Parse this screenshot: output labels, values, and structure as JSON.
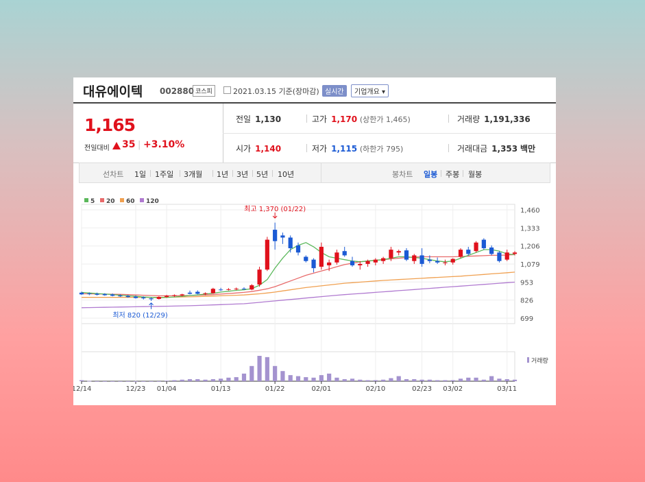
{
  "header": {
    "name": "대유에이텍",
    "code": "002880",
    "market": "코스피",
    "date": "2021.03.15 기준(장마감)",
    "realtime": "실시간",
    "corp_info": "기업개요 ▾"
  },
  "quote": {
    "price": "1,165",
    "change_label": "전일대비",
    "change_value": "35",
    "change_pct": "+3.10%",
    "prev_label": "전일",
    "prev": "1,130",
    "high_label": "고가",
    "high": "1,170",
    "upper_limit": "(상한가 1,465)",
    "volume_label": "거래량",
    "volume": "1,191,336",
    "open_label": "시가",
    "open": "1,140",
    "low_label": "저가",
    "low": "1,115",
    "lower_limit": "(하한가 795)",
    "amount_label": "거래대금",
    "amount": "1,353",
    "amount_unit": "백만"
  },
  "tabs": {
    "line_label": "선차트",
    "periods": [
      "1일",
      "1주일",
      "3개월",
      "1년",
      "3년",
      "5년",
      "10년"
    ],
    "candle_label": "봉차트",
    "candle_types": [
      "일봉",
      "주봉",
      "월봉"
    ],
    "candle_selected": 0
  },
  "colors": {
    "up": "#e0111c",
    "down": "#1b5ad4",
    "ma5": "#5bb85b",
    "ma20": "#e86a6a",
    "ma60": "#f0a050",
    "ma120": "#b07ad0",
    "volume": "#a493cf"
  },
  "chart_data": {
    "type": "candlestick",
    "legend": [
      "5",
      "20",
      "60",
      "120"
    ],
    "y_ticks": [
      1460,
      1333,
      1206,
      1079,
      953,
      826,
      699
    ],
    "y_tick_labels": [
      "1,460",
      "1,333",
      "1,206",
      "1,079",
      "953",
      "826",
      "699"
    ],
    "ylim": [
      699,
      1460
    ],
    "x_labels": [
      {
        "label": "12/14",
        "index": 0
      },
      {
        "label": "12/23",
        "index": 7
      },
      {
        "label": "01/04",
        "index": 11
      },
      {
        "label": "01/13",
        "index": 18
      },
      {
        "label": "01/22",
        "index": 25
      },
      {
        "label": "02/01",
        "index": 31
      },
      {
        "label": "02/10",
        "index": 38
      },
      {
        "label": "02/23",
        "index": 44
      },
      {
        "label": "03/02",
        "index": 48
      },
      {
        "label": "03/11",
        "index": 55
      }
    ],
    "n_days": 57,
    "high_annotation": "최고 1,370 (01/22)",
    "high_index": 25,
    "low_annotation": "최저 820 (12/29)",
    "low_index": 9,
    "volume_label": "거래량",
    "candles": [
      {
        "o": 878,
        "h": 885,
        "l": 862,
        "c": 866
      },
      {
        "o": 872,
        "h": 880,
        "l": 860,
        "c": 868
      },
      {
        "o": 870,
        "h": 878,
        "l": 858,
        "c": 863
      },
      {
        "o": 868,
        "h": 874,
        "l": 856,
        "c": 860
      },
      {
        "o": 865,
        "h": 872,
        "l": 852,
        "c": 856
      },
      {
        "o": 858,
        "h": 866,
        "l": 848,
        "c": 852
      },
      {
        "o": 855,
        "h": 862,
        "l": 843,
        "c": 847
      },
      {
        "o": 850,
        "h": 858,
        "l": 836,
        "c": 840
      },
      {
        "o": 845,
        "h": 852,
        "l": 830,
        "c": 838
      },
      {
        "o": 838,
        "h": 844,
        "l": 820,
        "c": 832
      },
      {
        "o": 834,
        "h": 852,
        "l": 830,
        "c": 848
      },
      {
        "o": 848,
        "h": 862,
        "l": 842,
        "c": 856
      },
      {
        "o": 855,
        "h": 866,
        "l": 848,
        "c": 860
      },
      {
        "o": 860,
        "h": 870,
        "l": 852,
        "c": 866
      },
      {
        "o": 878,
        "h": 892,
        "l": 866,
        "c": 870
      },
      {
        "o": 884,
        "h": 894,
        "l": 866,
        "c": 870
      },
      {
        "o": 870,
        "h": 880,
        "l": 860,
        "c": 874
      },
      {
        "o": 874,
        "h": 912,
        "l": 870,
        "c": 905
      },
      {
        "o": 900,
        "h": 912,
        "l": 890,
        "c": 898
      },
      {
        "o": 900,
        "h": 910,
        "l": 893,
        "c": 902
      },
      {
        "o": 902,
        "h": 914,
        "l": 895,
        "c": 906
      },
      {
        "o": 906,
        "h": 916,
        "l": 898,
        "c": 904
      },
      {
        "o": 900,
        "h": 938,
        "l": 895,
        "c": 930
      },
      {
        "o": 935,
        "h": 1060,
        "l": 920,
        "c": 1040
      },
      {
        "o": 1040,
        "h": 1270,
        "l": 1030,
        "c": 1250
      },
      {
        "o": 1320,
        "h": 1370,
        "l": 1180,
        "c": 1240
      },
      {
        "o": 1280,
        "h": 1300,
        "l": 1220,
        "c": 1265
      },
      {
        "o": 1265,
        "h": 1280,
        "l": 1160,
        "c": 1190
      },
      {
        "o": 1210,
        "h": 1230,
        "l": 1140,
        "c": 1160
      },
      {
        "o": 1130,
        "h": 1140,
        "l": 1090,
        "c": 1100
      },
      {
        "o": 1110,
        "h": 1120,
        "l": 1020,
        "c": 1050
      },
      {
        "o": 1060,
        "h": 1230,
        "l": 1040,
        "c": 1200
      },
      {
        "o": 1070,
        "h": 1110,
        "l": 1030,
        "c": 1090
      },
      {
        "o": 1090,
        "h": 1180,
        "l": 1075,
        "c": 1160
      },
      {
        "o": 1170,
        "h": 1200,
        "l": 1130,
        "c": 1140
      },
      {
        "o": 1100,
        "h": 1130,
        "l": 1060,
        "c": 1070
      },
      {
        "o": 1070,
        "h": 1100,
        "l": 1040,
        "c": 1080
      },
      {
        "o": 1080,
        "h": 1110,
        "l": 1060,
        "c": 1100
      },
      {
        "o": 1090,
        "h": 1120,
        "l": 1070,
        "c": 1110
      },
      {
        "o": 1100,
        "h": 1130,
        "l": 1080,
        "c": 1120
      },
      {
        "o": 1120,
        "h": 1200,
        "l": 1100,
        "c": 1180
      },
      {
        "o": 1160,
        "h": 1180,
        "l": 1140,
        "c": 1170
      },
      {
        "o": 1175,
        "h": 1190,
        "l": 1100,
        "c": 1110
      },
      {
        "o": 1100,
        "h": 1150,
        "l": 1080,
        "c": 1140
      },
      {
        "o": 1140,
        "h": 1190,
        "l": 1060,
        "c": 1080
      },
      {
        "o": 1110,
        "h": 1140,
        "l": 1085,
        "c": 1100
      },
      {
        "o": 1100,
        "h": 1125,
        "l": 1080,
        "c": 1090
      },
      {
        "o": 1085,
        "h": 1110,
        "l": 1070,
        "c": 1090
      },
      {
        "o": 1090,
        "h": 1120,
        "l": 1075,
        "c": 1115
      },
      {
        "o": 1130,
        "h": 1190,
        "l": 1120,
        "c": 1180
      },
      {
        "o": 1180,
        "h": 1200,
        "l": 1140,
        "c": 1150
      },
      {
        "o": 1170,
        "h": 1240,
        "l": 1160,
        "c": 1230
      },
      {
        "o": 1250,
        "h": 1260,
        "l": 1180,
        "c": 1190
      },
      {
        "o": 1195,
        "h": 1210,
        "l": 1140,
        "c": 1150
      },
      {
        "o": 1160,
        "h": 1170,
        "l": 1090,
        "c": 1100
      },
      {
        "o": 1110,
        "h": 1180,
        "l": 1100,
        "c": 1160
      },
      {
        "o": 1150,
        "h": 1170,
        "l": 1140,
        "c": 1160
      }
    ],
    "ma5": [
      880,
      876,
      872,
      868,
      864,
      860,
      856,
      852,
      848,
      845,
      842,
      844,
      848,
      852,
      858,
      862,
      868,
      874,
      882,
      888,
      894,
      898,
      906,
      930,
      970,
      1050,
      1120,
      1180,
      1210,
      1230,
      1200,
      1160,
      1130,
      1120,
      1110,
      1100,
      1095,
      1100,
      1105,
      1110,
      1120,
      1130,
      1130,
      1125,
      1120,
      1110,
      1100,
      1095,
      1100,
      1120,
      1140,
      1160,
      1180,
      1180,
      1170,
      1150,
      1145
    ],
    "ma20": [
      870,
      870,
      869,
      868,
      867,
      866,
      864,
      862,
      860,
      858,
      856,
      856,
      856,
      857,
      858,
      860,
      862,
      864,
      868,
      872,
      876,
      880,
      886,
      895,
      905,
      920,
      940,
      960,
      980,
      1000,
      1015,
      1030,
      1045,
      1060,
      1075,
      1085,
      1095,
      1100,
      1105,
      1110,
      1115,
      1120,
      1125,
      1128,
      1130,
      1130,
      1130,
      1130,
      1130,
      1132,
      1134,
      1136,
      1138,
      1140,
      1140,
      1142,
      1145
    ],
    "ma60": [
      845,
      845,
      845,
      845,
      845,
      845,
      845,
      845,
      845,
      845,
      845,
      846,
      847,
      848,
      849,
      850,
      852,
      854,
      856,
      858,
      860,
      862,
      866,
      870,
      876,
      882,
      890,
      898,
      906,
      914,
      920,
      926,
      932,
      938,
      944,
      948,
      952,
      956,
      960,
      964,
      967,
      970,
      973,
      976,
      979,
      982,
      985,
      988,
      991,
      994,
      998,
      1002,
      1006,
      1010,
      1014,
      1018,
      1022
    ],
    "ma120": [
      772,
      773,
      774,
      775,
      776,
      777,
      778,
      779,
      780,
      781,
      782,
      783,
      784,
      785,
      786,
      788,
      790,
      792,
      794,
      796,
      798,
      800,
      805,
      810,
      815,
      820,
      825,
      830,
      835,
      840,
      845,
      850,
      855,
      860,
      864,
      868,
      872,
      876,
      880,
      884,
      888,
      892,
      896,
      900,
      904,
      908,
      912,
      916,
      920,
      924,
      928,
      932,
      936,
      940,
      944,
      948,
      952
    ],
    "volume": [
      4,
      1,
      0,
      0,
      0,
      0,
      0,
      0,
      0,
      0,
      0,
      2,
      4,
      6,
      8,
      8,
      6,
      8,
      10,
      14,
      16,
      30,
      60,
      100,
      95,
      60,
      40,
      24,
      20,
      16,
      14,
      24,
      30,
      14,
      8,
      10,
      6,
      4,
      4,
      6,
      12,
      20,
      8,
      8,
      6,
      6,
      4,
      4,
      4,
      10,
      14,
      14,
      6,
      20,
      10,
      8,
      6
    ]
  }
}
